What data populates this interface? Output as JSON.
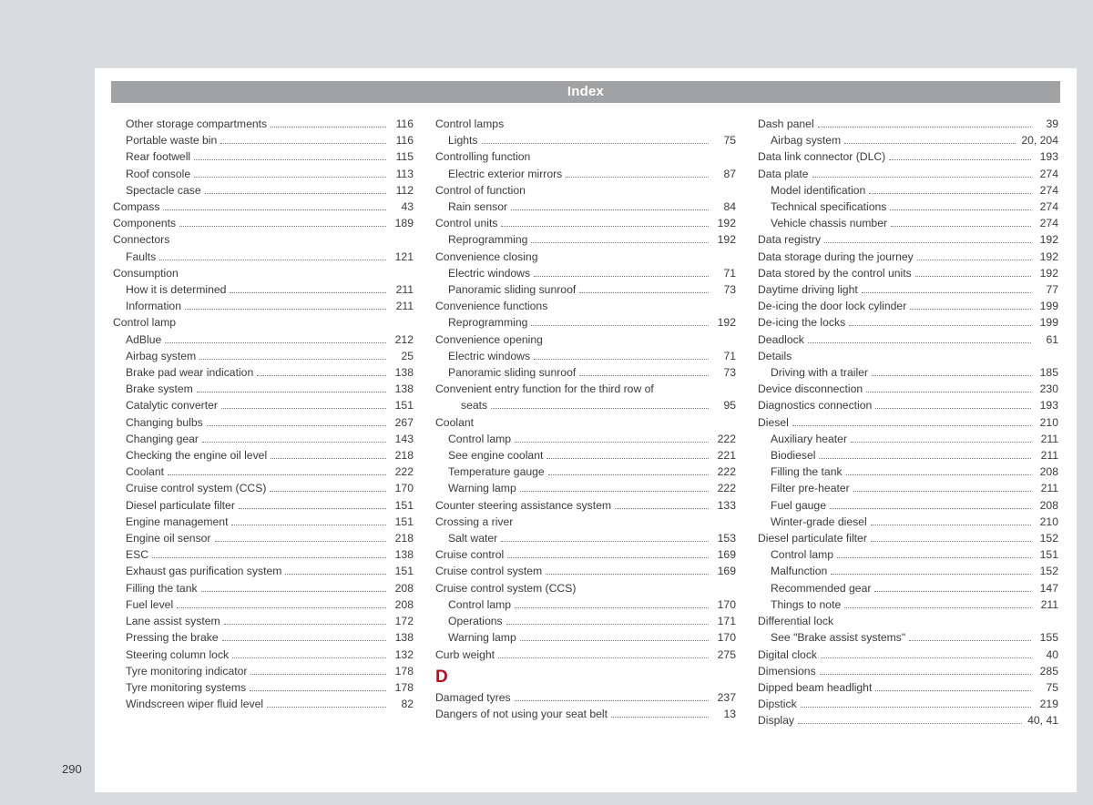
{
  "page_title": "Index",
  "page_number": "290",
  "columns": [
    [
      {
        "type": "entry",
        "level": 1,
        "label": "Other storage compartments",
        "page": "116"
      },
      {
        "type": "entry",
        "level": 1,
        "label": "Portable waste bin",
        "page": "116"
      },
      {
        "type": "entry",
        "level": 1,
        "label": "Rear footwell",
        "page": "115"
      },
      {
        "type": "entry",
        "level": 1,
        "label": "Roof console",
        "page": "113"
      },
      {
        "type": "entry",
        "level": 1,
        "label": "Spectacle case",
        "page": "112"
      },
      {
        "type": "entry",
        "level": 0,
        "label": "Compass",
        "page": "43"
      },
      {
        "type": "entry",
        "level": 0,
        "label": "Components",
        "page": "189"
      },
      {
        "type": "entry",
        "level": 0,
        "label": "Connectors",
        "nopage": true
      },
      {
        "type": "entry",
        "level": 1,
        "label": "Faults",
        "page": "121"
      },
      {
        "type": "entry",
        "level": 0,
        "label": "Consumption",
        "nopage": true
      },
      {
        "type": "entry",
        "level": 1,
        "label": "How it is determined",
        "page": "211"
      },
      {
        "type": "entry",
        "level": 1,
        "label": "Information",
        "page": "211"
      },
      {
        "type": "entry",
        "level": 0,
        "label": "Control lamp",
        "nopage": true
      },
      {
        "type": "entry",
        "level": 1,
        "label": "AdBlue",
        "page": "212"
      },
      {
        "type": "entry",
        "level": 1,
        "label": "Airbag system",
        "page": "25"
      },
      {
        "type": "entry",
        "level": 1,
        "label": "Brake pad wear indication",
        "page": "138"
      },
      {
        "type": "entry",
        "level": 1,
        "label": "Brake system",
        "page": "138"
      },
      {
        "type": "entry",
        "level": 1,
        "label": "Catalytic converter",
        "page": "151"
      },
      {
        "type": "entry",
        "level": 1,
        "label": "Changing bulbs",
        "page": "267"
      },
      {
        "type": "entry",
        "level": 1,
        "label": "Changing gear",
        "page": "143"
      },
      {
        "type": "entry",
        "level": 1,
        "label": "Checking the engine oil level",
        "page": "218"
      },
      {
        "type": "entry",
        "level": 1,
        "label": "Coolant",
        "page": "222"
      },
      {
        "type": "entry",
        "level": 1,
        "label": "Cruise control system (CCS)",
        "page": "170"
      },
      {
        "type": "entry",
        "level": 1,
        "label": "Diesel particulate filter",
        "page": "151"
      },
      {
        "type": "entry",
        "level": 1,
        "label": "Engine management",
        "page": "151"
      },
      {
        "type": "entry",
        "level": 1,
        "label": "Engine oil sensor",
        "page": "218"
      },
      {
        "type": "entry",
        "level": 1,
        "label": "ESC",
        "page": "138"
      },
      {
        "type": "entry",
        "level": 1,
        "label": "Exhaust gas purification system",
        "page": "151"
      },
      {
        "type": "entry",
        "level": 1,
        "label": "Filling the tank",
        "page": "208"
      },
      {
        "type": "entry",
        "level": 1,
        "label": "Fuel level",
        "page": "208"
      },
      {
        "type": "entry",
        "level": 1,
        "label": "Lane assist system",
        "page": "172"
      },
      {
        "type": "entry",
        "level": 1,
        "label": "Pressing the brake",
        "page": "138"
      },
      {
        "type": "entry",
        "level": 1,
        "label": "Steering column lock",
        "page": "132"
      },
      {
        "type": "entry",
        "level": 1,
        "label": "Tyre monitoring indicator",
        "page": "178"
      },
      {
        "type": "entry",
        "level": 1,
        "label": "Tyre monitoring systems",
        "page": "178"
      },
      {
        "type": "entry",
        "level": 1,
        "label": "Windscreen wiper fluid level",
        "page": "82"
      }
    ],
    [
      {
        "type": "entry",
        "level": 0,
        "label": "Control lamps",
        "nopage": true
      },
      {
        "type": "entry",
        "level": 1,
        "label": "Lights",
        "page": "75"
      },
      {
        "type": "entry",
        "level": 0,
        "label": "Controlling function",
        "nopage": true
      },
      {
        "type": "entry",
        "level": 1,
        "label": "Electric exterior mirrors",
        "page": "87"
      },
      {
        "type": "entry",
        "level": 0,
        "label": "Control of function",
        "nopage": true
      },
      {
        "type": "entry",
        "level": 1,
        "label": "Rain sensor",
        "page": "84"
      },
      {
        "type": "entry",
        "level": 0,
        "label": "Control units",
        "page": "192"
      },
      {
        "type": "entry",
        "level": 1,
        "label": "Reprogramming",
        "page": "192"
      },
      {
        "type": "entry",
        "level": 0,
        "label": "Convenience closing",
        "nopage": true
      },
      {
        "type": "entry",
        "level": 1,
        "label": "Electric windows",
        "page": "71"
      },
      {
        "type": "entry",
        "level": 1,
        "label": "Panoramic sliding sunroof",
        "page": "73"
      },
      {
        "type": "entry",
        "level": 0,
        "label": "Convenience functions",
        "nopage": true
      },
      {
        "type": "entry",
        "level": 1,
        "label": "Reprogramming",
        "page": "192"
      },
      {
        "type": "entry",
        "level": 0,
        "label": "Convenience opening",
        "nopage": true
      },
      {
        "type": "entry",
        "level": 1,
        "label": "Electric windows",
        "page": "71"
      },
      {
        "type": "entry",
        "level": 1,
        "label": "Panoramic sliding sunroof",
        "page": "73"
      },
      {
        "type": "entry",
        "level": 0,
        "label": "Convenient entry function for the third row of",
        "nopage": true
      },
      {
        "type": "entry",
        "level": 2,
        "label": "seats",
        "page": "95"
      },
      {
        "type": "entry",
        "level": 0,
        "label": "Coolant",
        "nopage": true
      },
      {
        "type": "entry",
        "level": 1,
        "label": "Control lamp",
        "page": "222"
      },
      {
        "type": "entry",
        "level": 1,
        "label": "See engine coolant",
        "page": "221"
      },
      {
        "type": "entry",
        "level": 1,
        "label": "Temperature gauge",
        "page": "222"
      },
      {
        "type": "entry",
        "level": 1,
        "label": "Warning lamp",
        "page": "222"
      },
      {
        "type": "entry",
        "level": 0,
        "label": "Counter steering assistance system",
        "page": "133"
      },
      {
        "type": "entry",
        "level": 0,
        "label": "Crossing a river",
        "nopage": true
      },
      {
        "type": "entry",
        "level": 1,
        "label": "Salt water",
        "page": "153"
      },
      {
        "type": "entry",
        "level": 0,
        "label": "Cruise control",
        "page": "169"
      },
      {
        "type": "entry",
        "level": 0,
        "label": "Cruise control system",
        "page": "169"
      },
      {
        "type": "entry",
        "level": 0,
        "label": "Cruise control system (CCS)",
        "nopage": true
      },
      {
        "type": "entry",
        "level": 1,
        "label": "Control lamp",
        "page": "170"
      },
      {
        "type": "entry",
        "level": 1,
        "label": "Operations",
        "page": "171"
      },
      {
        "type": "entry",
        "level": 1,
        "label": "Warning lamp",
        "page": "170"
      },
      {
        "type": "entry",
        "level": 0,
        "label": "Curb weight",
        "page": "275"
      },
      {
        "type": "letter",
        "label": "D"
      },
      {
        "type": "entry",
        "level": 0,
        "label": "Damaged tyres",
        "page": "237"
      },
      {
        "type": "entry",
        "level": 0,
        "label": "Dangers of not using your seat belt",
        "page": "13"
      }
    ],
    [
      {
        "type": "entry",
        "level": 0,
        "label": "Dash panel",
        "page": "39"
      },
      {
        "type": "entry",
        "level": 1,
        "label": "Airbag system",
        "page": "20, 204"
      },
      {
        "type": "entry",
        "level": 0,
        "label": "Data link connector (DLC)",
        "page": "193"
      },
      {
        "type": "entry",
        "level": 0,
        "label": "Data plate",
        "page": "274"
      },
      {
        "type": "entry",
        "level": 1,
        "label": "Model identification",
        "page": "274"
      },
      {
        "type": "entry",
        "level": 1,
        "label": "Technical specifications",
        "page": "274"
      },
      {
        "type": "entry",
        "level": 1,
        "label": "Vehicle chassis number",
        "page": "274"
      },
      {
        "type": "entry",
        "level": 0,
        "label": "Data registry",
        "page": "192"
      },
      {
        "type": "entry",
        "level": 0,
        "label": "Data storage during the journey",
        "page": "192"
      },
      {
        "type": "entry",
        "level": 0,
        "label": "Data stored by the control units",
        "page": "192"
      },
      {
        "type": "entry",
        "level": 0,
        "label": "Daytime driving light",
        "page": "77"
      },
      {
        "type": "entry",
        "level": 0,
        "label": "De-icing the door lock cylinder",
        "page": "199"
      },
      {
        "type": "entry",
        "level": 0,
        "label": "De-icing the locks",
        "page": "199"
      },
      {
        "type": "entry",
        "level": 0,
        "label": "Deadlock",
        "page": "61"
      },
      {
        "type": "entry",
        "level": 0,
        "label": "Details",
        "nopage": true
      },
      {
        "type": "entry",
        "level": 1,
        "label": "Driving with a trailer",
        "page": "185"
      },
      {
        "type": "entry",
        "level": 0,
        "label": "Device disconnection",
        "page": "230"
      },
      {
        "type": "entry",
        "level": 0,
        "label": "Diagnostics connection",
        "page": "193"
      },
      {
        "type": "entry",
        "level": 0,
        "label": "Diesel",
        "page": "210"
      },
      {
        "type": "entry",
        "level": 1,
        "label": "Auxiliary heater",
        "page": "211"
      },
      {
        "type": "entry",
        "level": 1,
        "label": "Biodiesel",
        "page": "211"
      },
      {
        "type": "entry",
        "level": 1,
        "label": "Filling the tank",
        "page": "208"
      },
      {
        "type": "entry",
        "level": 1,
        "label": "Filter pre-heater",
        "page": "211"
      },
      {
        "type": "entry",
        "level": 1,
        "label": "Fuel gauge",
        "page": "208"
      },
      {
        "type": "entry",
        "level": 1,
        "label": "Winter-grade diesel",
        "page": "210"
      },
      {
        "type": "entry",
        "level": 0,
        "label": "Diesel particulate filter",
        "page": "152"
      },
      {
        "type": "entry",
        "level": 1,
        "label": "Control lamp",
        "page": "151"
      },
      {
        "type": "entry",
        "level": 1,
        "label": "Malfunction",
        "page": "152"
      },
      {
        "type": "entry",
        "level": 1,
        "label": "Recommended gear",
        "page": "147"
      },
      {
        "type": "entry",
        "level": 1,
        "label": "Things to note",
        "page": "211"
      },
      {
        "type": "entry",
        "level": 0,
        "label": "Differential lock",
        "nopage": true
      },
      {
        "type": "entry",
        "level": 1,
        "label": "See \"Brake assist systems\"",
        "page": "155"
      },
      {
        "type": "entry",
        "level": 0,
        "label": "Digital clock",
        "page": "40"
      },
      {
        "type": "entry",
        "level": 0,
        "label": "Dimensions",
        "page": "285"
      },
      {
        "type": "entry",
        "level": 0,
        "label": "Dipped beam headlight",
        "page": "75"
      },
      {
        "type": "entry",
        "level": 0,
        "label": "Dipstick",
        "page": "219"
      },
      {
        "type": "entry",
        "level": 0,
        "label": "Display",
        "page": "40, 41"
      }
    ]
  ]
}
